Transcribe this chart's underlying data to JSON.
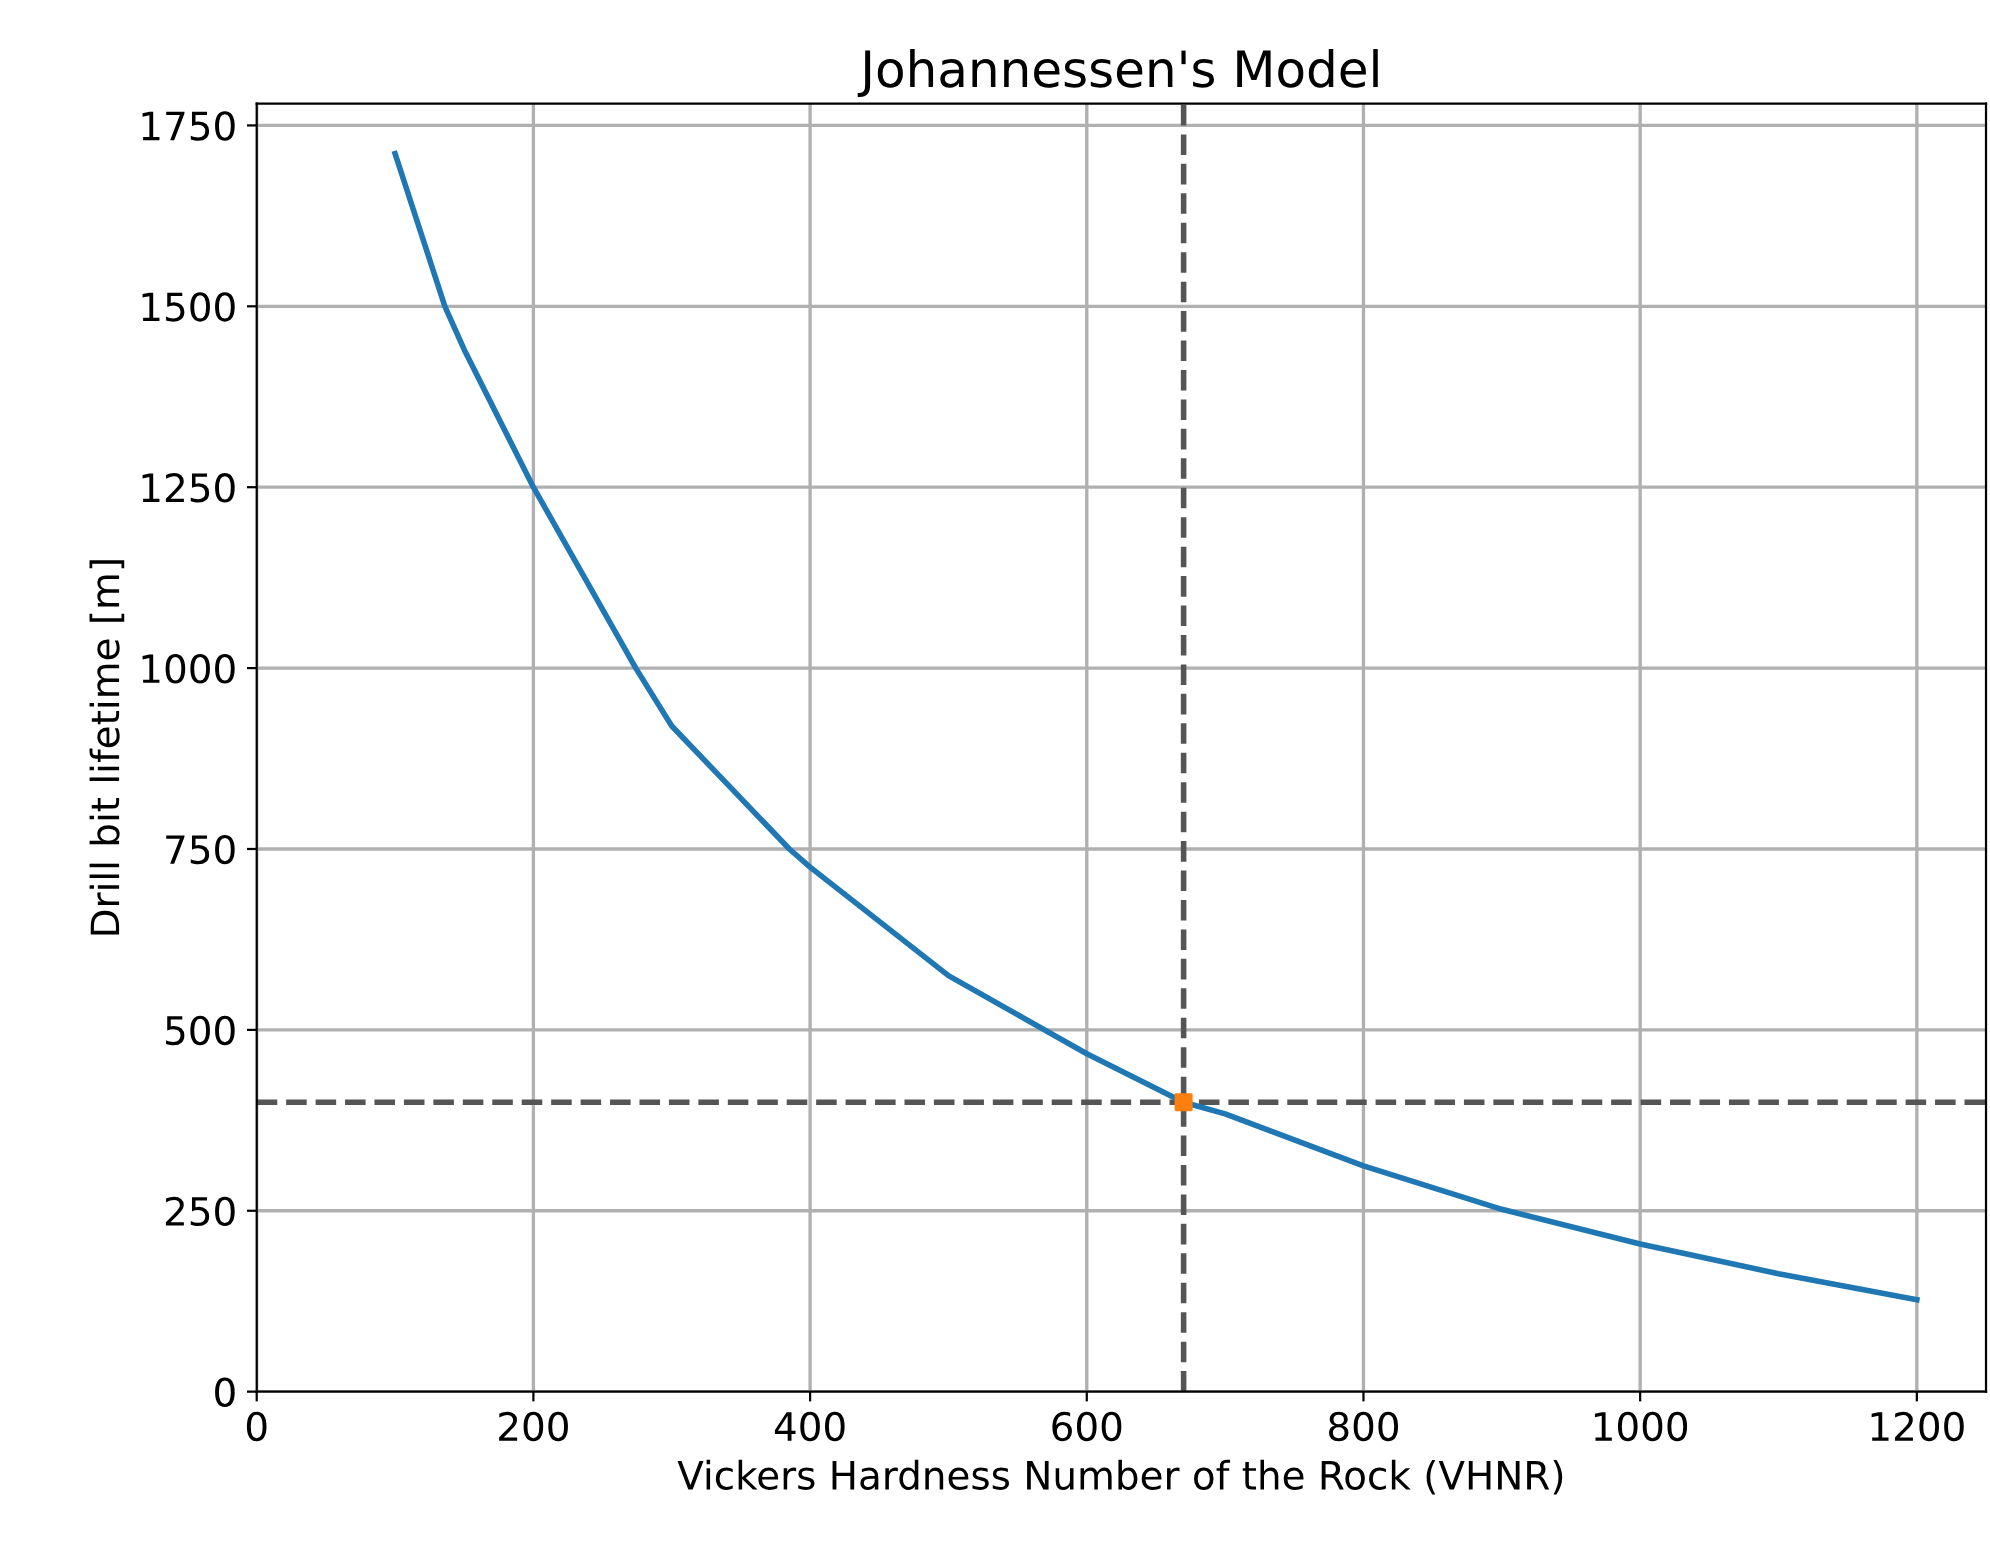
{
  "chart_data": {
    "type": "line",
    "title": "Johannessen's Model",
    "xlabel": "Vickers Hardness Number of the Rock (VHNR)",
    "ylabel": "Drill bit lifetime [m]",
    "series": [
      {
        "color": "#1f77b4",
        "x": [
          100,
          136,
          150,
          200,
          274,
          300,
          385,
          400,
          500,
          600,
          670,
          700,
          800,
          900,
          1000,
          1100,
          1200
        ],
        "values": [
          1711,
          1500,
          1440,
          1250,
          1000,
          920,
          750,
          725,
          575,
          467,
          400,
          384,
          312,
          252,
          204,
          163,
          127
        ]
      },
      {
        "type": "scatter",
        "color": "#ff7f0e",
        "marker": "square",
        "x": [
          670
        ],
        "values": [
          400
        ]
      }
    ],
    "ref_lines": [
      {
        "axis": "x",
        "value": 670,
        "color": "#555555",
        "line_style": "dashed"
      },
      {
        "axis": "y",
        "value": 400,
        "color": "#555555",
        "line_style": "dashed"
      }
    ],
    "xlim": [
      0,
      1250
    ],
    "xticks": [
      0,
      200,
      400,
      600,
      800,
      1000,
      1200
    ],
    "ylim": [
      0,
      1780
    ],
    "yticks": [
      0,
      250,
      500,
      750,
      1000,
      1250,
      1500,
      1750
    ],
    "grid": true,
    "legend": false
  }
}
